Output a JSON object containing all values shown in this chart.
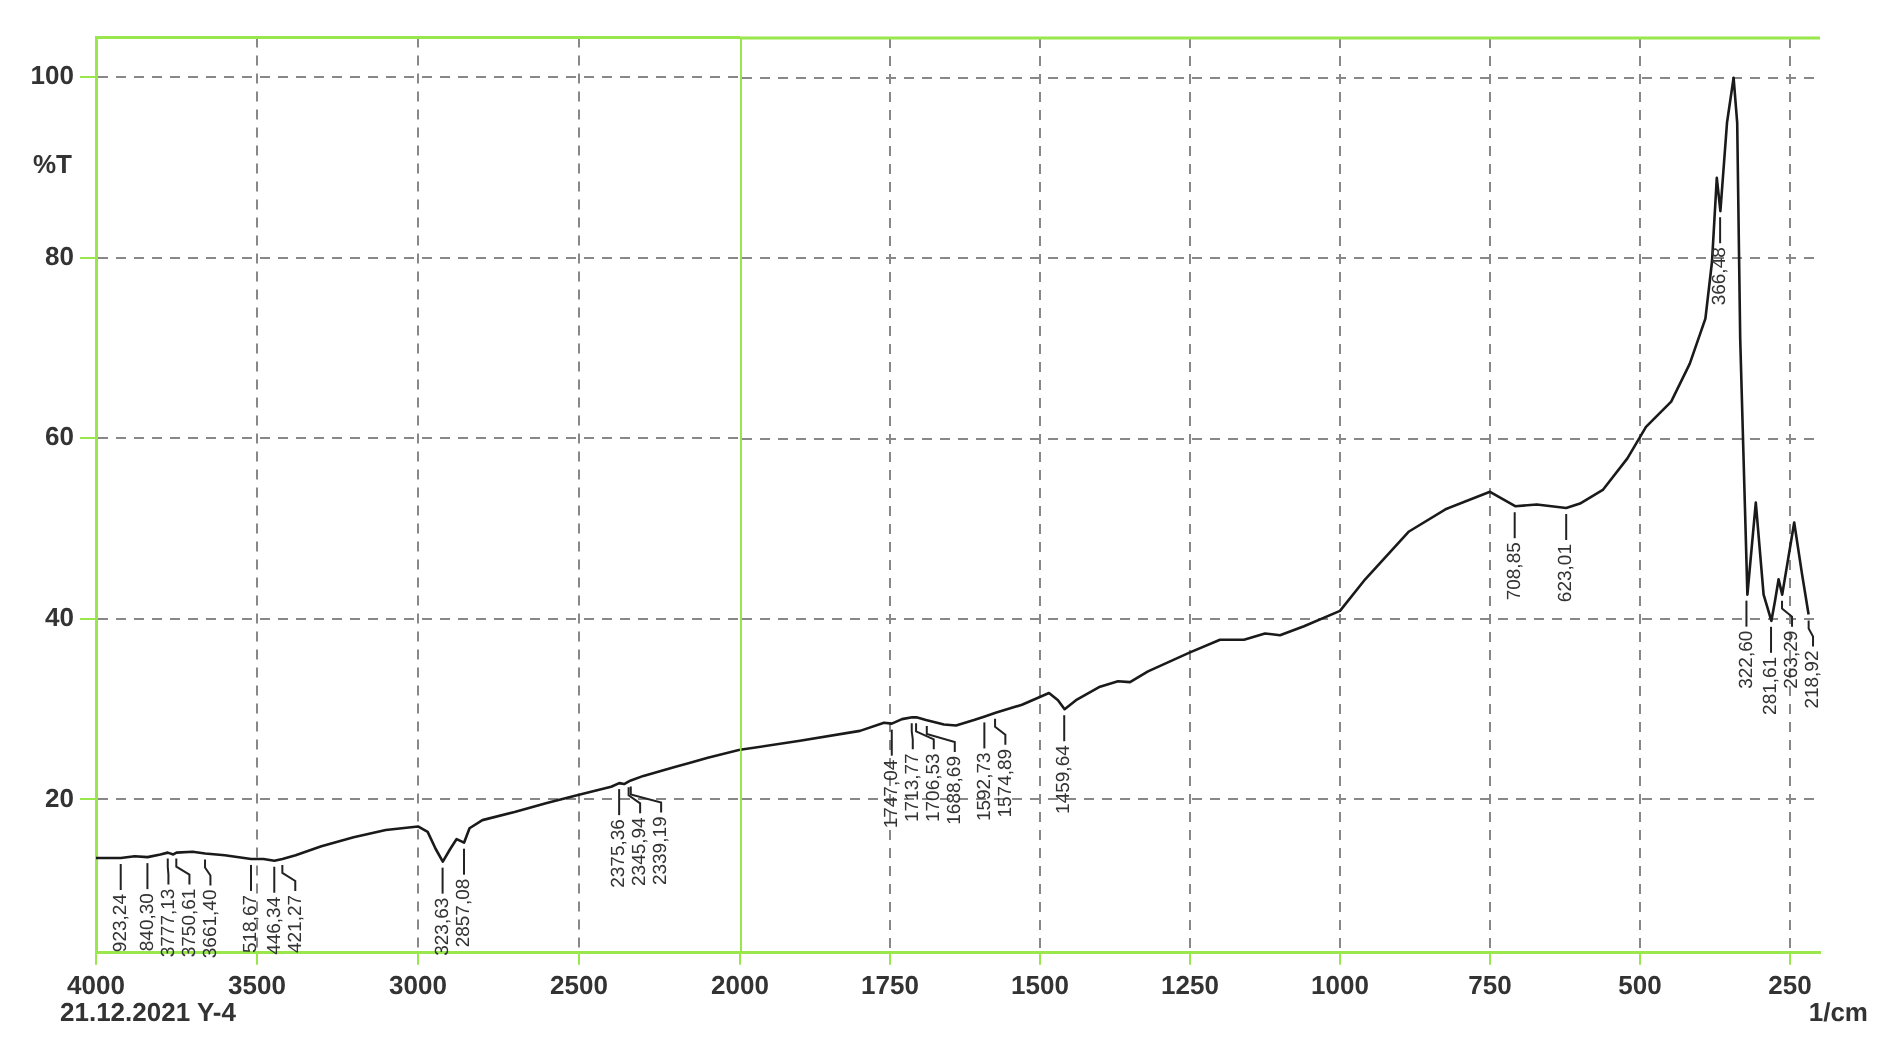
{
  "chart_data": [
    {
      "type": "line",
      "ylabel": "%T",
      "x": [
        4000,
        3923,
        3880,
        3840,
        3800,
        3777,
        3760,
        3750,
        3700,
        3661,
        3600,
        3518,
        3480,
        3446,
        3421,
        3380,
        3300,
        3200,
        3100,
        3000,
        2970,
        2945,
        2923,
        2900,
        2880,
        2857,
        2840,
        2800,
        2700,
        2600,
        2500,
        2400,
        2375,
        2360,
        2345,
        2339,
        2300,
        2200,
        2100,
        2000
      ],
      "series": [
        {
          "color": "#1a1a1a",
          "values": [
            13.5,
            13.5,
            13.7,
            13.6,
            13.9,
            14.1,
            13.9,
            14.1,
            14.2,
            14.0,
            13.8,
            13.4,
            13.4,
            13.2,
            13.4,
            13.8,
            14.8,
            15.8,
            16.6,
            17.0,
            16.4,
            14.5,
            13.1,
            14.5,
            15.6,
            15.2,
            16.8,
            17.7,
            18.6,
            19.6,
            20.5,
            21.4,
            21.8,
            21.7,
            22.0,
            22.1,
            22.6,
            23.6,
            24.6,
            25.5
          ]
        }
      ],
      "xlim": [
        4000,
        2000
      ],
      "xticks": [
        4000,
        3500,
        3000,
        2500,
        2000
      ],
      "ylim": [
        3,
        104.4
      ],
      "yticks": [
        20,
        40,
        60,
        80,
        100
      ],
      "grid": true,
      "annotations": [
        "21.12.2021 Y-4",
        {
          "text": "923,24",
          "x": 3923.24,
          "y": 13.5
        },
        {
          "text": "840,30",
          "x": 3840.3,
          "y": 13.6
        },
        {
          "text": "3777,13",
          "x": 3777.13,
          "y": 14.1
        },
        {
          "text": "3750,61",
          "x": 3750.61,
          "y": 14.1
        },
        {
          "text": "3661,40",
          "x": 3661.4,
          "y": 14.0
        },
        {
          "text": "518,67",
          "x": 3518.67,
          "y": 13.4
        },
        {
          "text": "446,34",
          "x": 3446.34,
          "y": 13.2
        },
        {
          "text": "421,27",
          "x": 3421.27,
          "y": 13.4
        },
        {
          "text": "323,63",
          "x": 2923.63,
          "y": 13.1
        },
        {
          "text": "2857,08",
          "x": 2857.08,
          "y": 15.2
        },
        {
          "text": "2375,36",
          "x": 2375.36,
          "y": 21.8
        },
        {
          "text": "2345,94",
          "x": 2345.94,
          "y": 22.0
        },
        {
          "text": "2339,19",
          "x": 2339.19,
          "y": 22.1
        }
      ]
    },
    {
      "type": "line",
      "xlabel": "1/cm",
      "x": [
        2000,
        1900,
        1800,
        1760,
        1747,
        1730,
        1713,
        1706,
        1690,
        1660,
        1640,
        1610,
        1592,
        1574,
        1530,
        1485,
        1470,
        1459,
        1440,
        1400,
        1370,
        1350,
        1320,
        1250,
        1200,
        1160,
        1125,
        1100,
        1060,
        1000,
        958,
        885,
        823,
        750,
        708,
        672,
        623,
        600,
        562,
        521,
        490,
        448,
        417,
        391,
        380,
        372,
        366,
        355,
        344,
        338,
        333,
        321,
        307,
        294,
        281,
        275,
        269,
        263,
        243,
        230,
        219
      ],
      "series": [
        {
          "color": "#1a1a1a",
          "values": [
            25.5,
            26.5,
            27.6,
            28.5,
            28.4,
            28.9,
            29.1,
            29.1,
            28.8,
            28.3,
            28.2,
            28.8,
            29.2,
            29.6,
            30.5,
            31.8,
            31.0,
            30.0,
            31.0,
            32.5,
            33.1,
            33.0,
            34.2,
            36.3,
            37.7,
            37.7,
            38.4,
            38.2,
            39.2,
            40.9,
            44.4,
            49.7,
            52.2,
            54.1,
            52.5,
            52.7,
            52.3,
            52.8,
            54.3,
            57.8,
            61.3,
            64.1,
            68.3,
            73.3,
            79.6,
            88.9,
            85.2,
            95.0,
            100,
            95.0,
            71.1,
            42.7,
            52.9,
            42.7,
            39.8,
            42.0,
            44.4,
            42.7,
            50.7,
            45.0,
            40.5
          ]
        }
      ],
      "xlim": [
        2000,
        200
      ],
      "xticks": [
        1750,
        1500,
        1250,
        1000,
        750,
        500,
        250
      ],
      "ylim": [
        3,
        104.4
      ],
      "yticks": [
        20,
        40,
        60,
        80,
        100
      ],
      "grid": true,
      "tick_labels": "x",
      "annotations": [
        {
          "text": "1747,04",
          "x": 1747.04,
          "y": 28.4
        },
        {
          "text": "1713,77",
          "x": 1713.77,
          "y": 29.1
        },
        {
          "text": "1706,53",
          "x": 1706.53,
          "y": 29.1
        },
        {
          "text": "1688,69",
          "x": 1688.69,
          "y": 28.8
        },
        {
          "text": "1592,73",
          "x": 1592.73,
          "y": 29.2
        },
        {
          "text": "1574,89",
          "x": 1574.89,
          "y": 29.6
        },
        {
          "text": "1459,64",
          "x": 1459.64,
          "y": 30.0
        },
        {
          "text": "708,85",
          "x": 708.85,
          "y": 52.5
        },
        {
          "text": "623,01",
          "x": 623.01,
          "y": 52.3
        },
        {
          "text": "366,48",
          "x": 366.48,
          "y": 85.2
        },
        {
          "text": "322,60",
          "x": 322.6,
          "y": 42.7
        },
        {
          "text": "281,61",
          "x": 281.61,
          "y": 39.8
        },
        {
          "text": "263,29",
          "x": 263.29,
          "y": 42.7
        },
        {
          "text": "218,92",
          "x": 218.92,
          "y": 40.5
        }
      ]
    }
  ]
}
